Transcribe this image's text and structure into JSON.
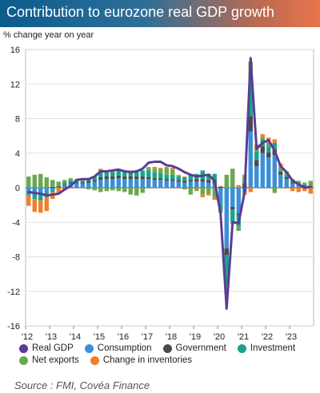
{
  "header": {
    "title": "Contribution to eurozone real GDP growth"
  },
  "source": "Source : FMI, Covéa Finance",
  "chart_data": {
    "type": "bar",
    "ylabel": "% change year on year",
    "ylim": [
      -16,
      16
    ],
    "yticks": [
      16,
      12,
      8,
      4,
      0,
      -4,
      -8,
      -12,
      -16
    ],
    "xticks": [
      "'12",
      "'13",
      "'14",
      "'15",
      "'16",
      "'17",
      "'18",
      "'19",
      "'20",
      "'21",
      "'22",
      "'23"
    ],
    "x_start_year": 2012,
    "x_quarters": 48,
    "grid": true,
    "legend_position": "bottom",
    "series": [
      {
        "name": "Consumption",
        "color": "#3a8fd6",
        "kind": "bar",
        "values": [
          -0.4,
          -0.6,
          -0.7,
          -0.5,
          -0.2,
          0.1,
          0.3,
          0.5,
          0.5,
          0.5,
          0.6,
          0.7,
          0.9,
          1.0,
          1.0,
          1.1,
          1.0,
          1.0,
          1.0,
          1.0,
          1.0,
          0.9,
          0.9,
          0.8,
          0.8,
          0.7,
          0.6,
          0.7,
          0.7,
          0.7,
          0.6,
          0.5,
          -1.8,
          -7.0,
          -2.2,
          -3.0,
          -0.5,
          6.5,
          2.5,
          4.0,
          3.5,
          3.8,
          1.5,
          1.0,
          0.5,
          0.3,
          0.2,
          0.1
        ]
      },
      {
        "name": "Government",
        "color": "#4a4a4a",
        "kind": "bar",
        "values": [
          0.0,
          0.0,
          0.0,
          0.0,
          0.1,
          0.1,
          0.1,
          0.1,
          0.1,
          0.1,
          0.2,
          0.2,
          0.3,
          0.3,
          0.3,
          0.3,
          0.3,
          0.3,
          0.3,
          0.3,
          0.2,
          0.2,
          0.2,
          0.2,
          0.2,
          0.2,
          0.2,
          0.2,
          0.3,
          0.3,
          0.3,
          0.3,
          0.1,
          -0.8,
          -0.3,
          -0.2,
          0.5,
          1.8,
          0.7,
          0.8,
          0.6,
          0.6,
          0.3,
          0.2,
          0.1,
          0.1,
          0.1,
          0.1
        ]
      },
      {
        "name": "Investment",
        "color": "#17a589",
        "kind": "bar",
        "values": [
          -0.5,
          -0.7,
          -0.8,
          -0.6,
          -0.3,
          0.0,
          0.2,
          0.3,
          0.2,
          0.2,
          0.3,
          0.4,
          0.8,
          0.6,
          0.5,
          0.6,
          0.7,
          0.6,
          0.6,
          0.7,
          0.8,
          0.7,
          0.6,
          0.5,
          0.5,
          0.4,
          0.4,
          0.6,
          0.6,
          1.0,
          0.7,
          0.8,
          -0.8,
          -3.5,
          -1.5,
          -1.3,
          0.2,
          4.8,
          1.0,
          0.8,
          0.7,
          0.8,
          0.2,
          0.3,
          0.0,
          0.1,
          0.1,
          0.0
        ]
      },
      {
        "name": "Net exports",
        "color": "#6aa84f",
        "kind": "bar",
        "values": [
          1.3,
          1.5,
          1.6,
          1.2,
          0.8,
          0.5,
          0.3,
          0.2,
          0.1,
          0.0,
          -0.2,
          -0.3,
          -0.5,
          -0.4,
          -0.3,
          -0.4,
          -0.5,
          -0.8,
          -0.9,
          -0.6,
          0.3,
          0.4,
          0.5,
          0.8,
          0.6,
          0.1,
          -0.2,
          -0.8,
          -0.3,
          -0.8,
          -0.7,
          -1.1,
          -0.3,
          1.5,
          2.2,
          -0.5,
          0.8,
          1.5,
          0.3,
          0.3,
          0.4,
          -0.6,
          0.3,
          0.4,
          0.4,
          0.3,
          0.2,
          0.6
        ]
      },
      {
        "name": "Change in inventories",
        "color": "#f07f2c",
        "kind": "bar",
        "values": [
          -1.2,
          -1.5,
          -1.4,
          -1.6,
          -0.8,
          -0.6,
          -0.3,
          0.0,
          0.1,
          0.1,
          0.0,
          0.0,
          0.2,
          0.1,
          0.1,
          0.1,
          0.0,
          0.1,
          0.1,
          0.0,
          0.1,
          0.2,
          0.1,
          0.1,
          0.2,
          0.1,
          0.1,
          0.0,
          -0.1,
          -0.3,
          -0.2,
          -0.3,
          0.1,
          -1.0,
          -0.2,
          0.3,
          -0.3,
          -0.5,
          0.5,
          0.3,
          0.6,
          0.4,
          0.5,
          -0.1,
          -0.4,
          -0.5,
          -0.4,
          -0.7
        ]
      },
      {
        "name": "Real GDP",
        "color": "#5a3c96",
        "kind": "line",
        "values": [
          -0.5,
          -0.6,
          -0.7,
          -0.9,
          -0.8,
          -0.7,
          -0.2,
          0.2,
          0.9,
          1.0,
          1.0,
          1.3,
          1.9,
          1.9,
          2.0,
          2.1,
          1.9,
          1.8,
          1.9,
          2.2,
          2.9,
          3.0,
          3.0,
          2.6,
          2.5,
          2.2,
          1.8,
          1.5,
          1.3,
          1.4,
          1.5,
          0.8,
          -3.0,
          -14.0,
          -4.0,
          -4.1,
          -0.5,
          15.0,
          4.5,
          5.2,
          5.5,
          4.3,
          2.5,
          1.8,
          0.8,
          0.4,
          0.0,
          0.1
        ]
      }
    ]
  }
}
